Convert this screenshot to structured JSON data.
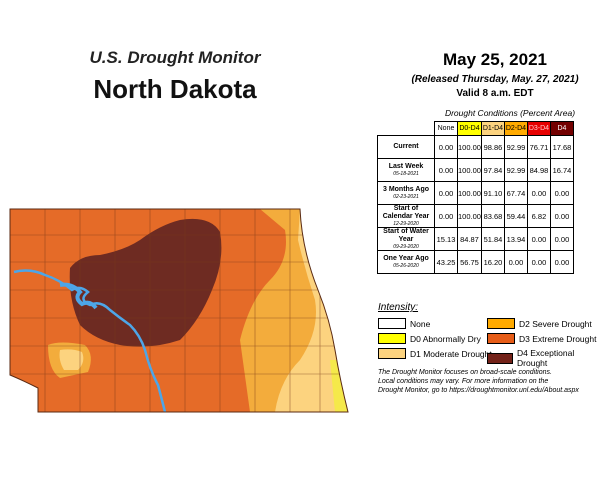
{
  "header": {
    "title_small": "U.S. Drought Monitor",
    "title_state": "North Dakota",
    "date": "May 25, 2021",
    "released": "(Released Thursday, May. 27, 2021)",
    "valid": "Valid 8 a.m. EDT"
  },
  "table": {
    "caption": "Drought Conditions (Percent Area)",
    "columns": [
      "None",
      "D0-D4",
      "D1-D4",
      "D2-D4",
      "D3-D4",
      "D4"
    ],
    "rows": [
      {
        "label": "Current",
        "sub": "",
        "values": [
          "0.00",
          "100.00",
          "98.86",
          "92.99",
          "76.71",
          "17.68"
        ]
      },
      {
        "label": "Last Week",
        "sub": "05-18-2021",
        "values": [
          "0.00",
          "100.00",
          "97.84",
          "92.99",
          "84.98",
          "16.74"
        ]
      },
      {
        "label": "3 Months Ago",
        "sub": "02-23-2021",
        "values": [
          "0.00",
          "100.00",
          "91.10",
          "67.74",
          "0.00",
          "0.00"
        ]
      },
      {
        "label": "Start of Calendar Year",
        "sub": "12-29-2020",
        "values": [
          "0.00",
          "100.00",
          "83.68",
          "59.44",
          "6.82",
          "0.00"
        ]
      },
      {
        "label": "Start of Water Year",
        "sub": "09-29-2020",
        "values": [
          "15.13",
          "84.87",
          "51.84",
          "13.94",
          "0.00",
          "0.00"
        ]
      },
      {
        "label": "One Year Ago",
        "sub": "05-26-2020",
        "values": [
          "43.25",
          "56.75",
          "16.20",
          "0.00",
          "0.00",
          "0.00"
        ]
      }
    ]
  },
  "legend": {
    "title": "Intensity:",
    "items": [
      {
        "label": "None",
        "color": "#ffffff"
      },
      {
        "label": "D0 Abnormally Dry",
        "color": "#ffff00"
      },
      {
        "label": "D1 Moderate Drought",
        "color": "#fcd37f"
      },
      {
        "label": "D2 Severe Drought",
        "color": "#ffaa00"
      },
      {
        "label": "D3 Extreme Drought",
        "color": "#e65c17"
      },
      {
        "label": "D4 Exceptional Drought",
        "color": "#732219"
      }
    ]
  },
  "footnote": {
    "line1": "The Drought Monitor focuses on broad-scale conditions.",
    "line2": "Local conditions may vary. For more information on the",
    "line3": "Drought Monitor, go to https://droughtmonitor.unl.edu/About.aspx"
  },
  "map_colors": {
    "d0": "#f5e94a",
    "d1": "#fcd37f",
    "d2": "#f3ac3c",
    "d3": "#e56b28",
    "d4": "#6e2b22",
    "water": "#4da6e8",
    "county_line": "#7a3a1a"
  }
}
